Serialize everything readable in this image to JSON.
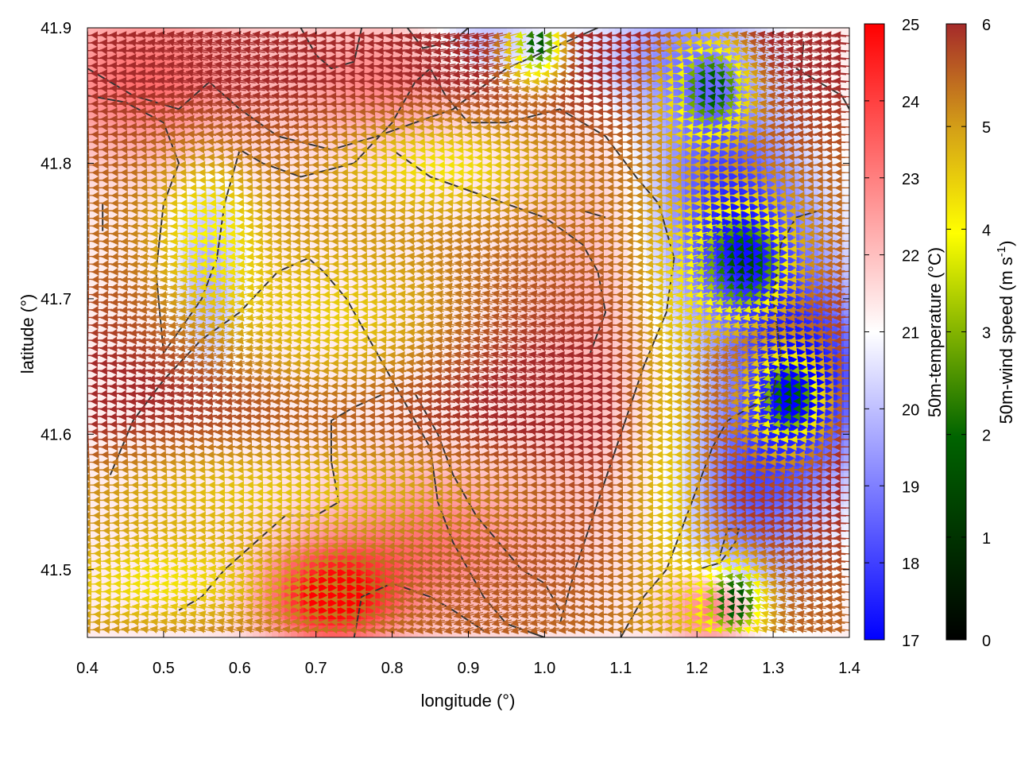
{
  "chart_data": {
    "type": "heatmap",
    "title": "",
    "xlabel": "longitude (°)",
    "ylabel": "latitude (°)",
    "xlim": [
      0.4,
      1.4
    ],
    "ylim": [
      41.45,
      41.9
    ],
    "x_ticks": [
      "0.4",
      "0.5",
      "0.6",
      "0.7",
      "0.8",
      "0.9",
      "1.0",
      "1.1",
      "1.2",
      "1.3",
      "1.4"
    ],
    "y_ticks": [
      "41.5",
      "41.6",
      "41.7",
      "41.8",
      "41.9"
    ],
    "temperature_colorbar": {
      "label": "50m-temperature (°C)",
      "range": [
        17,
        25
      ],
      "ticks": [
        "17",
        "18",
        "19",
        "20",
        "21",
        "22",
        "23",
        "24",
        "25"
      ],
      "colors": [
        "#0000ff",
        "#ffffff",
        "#ff0000"
      ]
    },
    "wind_colorbar": {
      "label": "50m-wind speed (m s",
      "label_sup": "-1",
      "label_end": ")",
      "range": [
        0,
        6
      ],
      "ticks": [
        "0",
        "1",
        "2",
        "3",
        "4",
        "5",
        "6"
      ],
      "colors": [
        "#000000",
        "#006400",
        "#ffff00",
        "#d4a017",
        "#a52a2a"
      ]
    },
    "temperature_field": {
      "base": 21.3,
      "anomalies": [
        {
          "lon": 1.26,
          "lat": 41.74,
          "dT": -3.6,
          "sx": 0.07,
          "sy": 0.05
        },
        {
          "lon": 1.35,
          "lat": 41.64,
          "dT": -3.8,
          "sx": 0.06,
          "sy": 0.05
        },
        {
          "lon": 1.27,
          "lat": 41.56,
          "dT": -2.6,
          "sx": 0.06,
          "sy": 0.06
        },
        {
          "lon": 1.22,
          "lat": 41.83,
          "dT": -2.0,
          "sx": 0.06,
          "sy": 0.05
        },
        {
          "lon": 1.15,
          "lat": 41.88,
          "dT": -1.5,
          "sx": 0.08,
          "sy": 0.03
        },
        {
          "lon": 0.92,
          "lat": 41.89,
          "dT": -1.4,
          "sx": 0.05,
          "sy": 0.02
        },
        {
          "lon": 0.56,
          "lat": 41.72,
          "dT": -1.6,
          "sx": 0.03,
          "sy": 0.05
        },
        {
          "lon": 0.72,
          "lat": 41.48,
          "dT": 3.8,
          "sx": 0.06,
          "sy": 0.025
        },
        {
          "lon": 0.85,
          "lat": 41.52,
          "dT": 1.8,
          "sx": 0.1,
          "sy": 0.04
        },
        {
          "lon": 0.48,
          "lat": 41.86,
          "dT": 2.0,
          "sx": 0.1,
          "sy": 0.04
        },
        {
          "lon": 0.78,
          "lat": 41.86,
          "dT": 1.6,
          "sx": 0.08,
          "sy": 0.03
        },
        {
          "lon": 1.05,
          "lat": 41.68,
          "dT": 0.9,
          "sx": 0.06,
          "sy": 0.1
        },
        {
          "lon": 1.22,
          "lat": 41.47,
          "dT": 2.2,
          "sx": 0.04,
          "sy": 0.02
        }
      ]
    },
    "wind_field": {
      "u_base": -5.8,
      "v_base": 0.0,
      "calm_zones": [
        {
          "lon": 1.26,
          "lat": 41.73,
          "r": 0.07
        },
        {
          "lon": 1.32,
          "lat": 41.63,
          "r": 0.06
        },
        {
          "lon": 1.25,
          "lat": 41.48,
          "r": 0.045
        },
        {
          "lon": 1.22,
          "lat": 41.86,
          "r": 0.06
        },
        {
          "lon": 0.99,
          "lat": 41.89,
          "r": 0.04
        }
      ],
      "moderate_bands": [
        {
          "lon": 0.72,
          "lat": 41.68,
          "sx": 0.13,
          "sy": 0.045
        },
        {
          "lon": 0.65,
          "lat": 41.56,
          "sx": 0.25,
          "sy": 0.03
        },
        {
          "lon": 0.87,
          "lat": 41.8,
          "sx": 0.1,
          "sy": 0.025
        },
        {
          "lon": 0.56,
          "lat": 41.75,
          "sx": 0.05,
          "sy": 0.04
        },
        {
          "lon": 1.17,
          "lat": 41.6,
          "sx": 0.04,
          "sy": 0.12
        },
        {
          "lon": 0.5,
          "lat": 41.49,
          "sx": 0.12,
          "sy": 0.025
        }
      ],
      "grid_spacing_deg": 0.0125
    },
    "contours": [
      [
        [
          0.4,
          41.87
        ],
        [
          0.46,
          41.85
        ],
        [
          0.52,
          41.84
        ],
        [
          0.56,
          41.86
        ],
        [
          0.6,
          41.84
        ],
        [
          0.65,
          41.82
        ],
        [
          0.72,
          41.81
        ],
        [
          0.78,
          41.82
        ],
        [
          0.83,
          41.83
        ],
        [
          0.88,
          41.84
        ],
        [
          0.95,
          41.87
        ],
        [
          1.03,
          41.89
        ],
        [
          1.07,
          41.9
        ]
      ],
      [
        [
          0.4,
          41.85
        ],
        [
          0.45,
          41.845
        ],
        [
          0.5,
          41.83
        ],
        [
          0.52,
          41.8
        ],
        [
          0.5,
          41.77
        ],
        [
          0.49,
          41.72
        ],
        [
          0.5,
          41.66
        ],
        [
          0.55,
          41.7
        ],
        [
          0.57,
          41.73
        ],
        [
          0.58,
          41.77
        ],
        [
          0.6,
          41.81
        ],
        [
          0.63,
          41.8
        ],
        [
          0.68,
          41.79
        ],
        [
          0.75,
          41.8
        ],
        [
          0.8,
          41.83
        ],
        [
          0.83,
          41.86
        ],
        [
          0.85,
          41.87
        ],
        [
          0.87,
          41.85
        ],
        [
          0.9,
          41.83
        ],
        [
          0.95,
          41.83
        ],
        [
          1.02,
          41.84
        ],
        [
          1.08,
          41.82
        ],
        [
          1.12,
          41.79
        ],
        [
          1.15,
          41.77
        ],
        [
          1.17,
          41.73
        ],
        [
          1.16,
          41.69
        ],
        [
          1.13,
          41.65
        ],
        [
          1.1,
          41.6
        ],
        [
          1.07,
          41.55
        ],
        [
          1.04,
          41.5
        ],
        [
          1.02,
          41.46
        ]
      ],
      [
        [
          0.68,
          41.9
        ],
        [
          0.7,
          41.88
        ],
        [
          0.72,
          41.87
        ],
        [
          0.75,
          41.875
        ],
        [
          0.76,
          41.9
        ]
      ],
      [
        [
          0.82,
          41.9
        ],
        [
          0.84,
          41.885
        ],
        [
          0.88,
          41.89
        ],
        [
          0.9,
          41.9
        ]
      ],
      [
        [
          0.42,
          41.77
        ],
        [
          0.42,
          41.75
        ]
      ],
      [
        [
          0.43,
          41.57
        ],
        [
          0.46,
          41.61
        ],
        [
          0.5,
          41.64
        ],
        [
          0.55,
          41.67
        ],
        [
          0.6,
          41.69
        ],
        [
          0.65,
          41.72
        ],
        [
          0.69,
          41.73
        ],
        [
          0.71,
          41.72
        ],
        [
          0.74,
          41.7
        ],
        [
          0.77,
          41.67
        ],
        [
          0.8,
          41.64
        ],
        [
          0.82,
          41.62
        ],
        [
          0.85,
          41.59
        ],
        [
          0.86,
          41.55
        ],
        [
          0.88,
          41.52
        ],
        [
          0.9,
          41.5
        ],
        [
          0.92,
          41.48
        ],
        [
          0.95,
          41.46
        ],
        [
          1.0,
          41.45
        ]
      ],
      [
        [
          0.52,
          41.47
        ],
        [
          0.55,
          41.48
        ],
        [
          0.58,
          41.5
        ],
        [
          0.62,
          41.52
        ],
        [
          0.66,
          41.54
        ],
        [
          0.7,
          41.54
        ],
        [
          0.73,
          41.55
        ],
        [
          0.72,
          41.58
        ],
        [
          0.72,
          41.61
        ],
        [
          0.75,
          41.62
        ],
        [
          0.79,
          41.63
        ],
        [
          0.83,
          41.63
        ],
        [
          0.86,
          41.6
        ],
        [
          0.88,
          41.57
        ],
        [
          0.91,
          41.54
        ],
        [
          0.94,
          41.52
        ],
        [
          0.97,
          41.5
        ],
        [
          1.0,
          41.49
        ],
        [
          1.02,
          41.47
        ]
      ],
      [
        [
          0.75,
          41.45
        ],
        [
          0.76,
          41.48
        ],
        [
          0.8,
          41.49
        ],
        [
          0.85,
          41.48
        ],
        [
          0.88,
          41.47
        ],
        [
          0.92,
          41.455
        ]
      ],
      [
        [
          0.8,
          41.81
        ],
        [
          0.85,
          41.79
        ],
        [
          0.9,
          41.78
        ],
        [
          0.95,
          41.77
        ],
        [
          1.0,
          41.76
        ],
        [
          1.05,
          41.74
        ],
        [
          1.07,
          41.72
        ],
        [
          1.08,
          41.69
        ],
        [
          1.06,
          41.66
        ]
      ],
      [
        [
          1.05,
          41.765
        ],
        [
          1.08,
          41.76
        ]
      ],
      [
        [
          1.1,
          41.45
        ],
        [
          1.13,
          41.48
        ],
        [
          1.16,
          41.5
        ],
        [
          1.18,
          41.53
        ],
        [
          1.2,
          41.56
        ],
        [
          1.22,
          41.59
        ],
        [
          1.24,
          41.61
        ],
        [
          1.27,
          41.62
        ],
        [
          1.3,
          41.63
        ],
        [
          1.31,
          41.66
        ],
        [
          1.3,
          41.7
        ],
        [
          1.31,
          41.74
        ],
        [
          1.33,
          41.76
        ],
        [
          1.36,
          41.765
        ]
      ],
      [
        [
          1.2,
          41.5
        ],
        [
          1.23,
          41.505
        ],
        [
          1.25,
          41.52
        ],
        [
          1.255,
          41.53
        ],
        [
          1.24,
          41.53
        ],
        [
          1.23,
          41.51
        ]
      ],
      [
        [
          1.33,
          41.87
        ],
        [
          1.36,
          41.86
        ],
        [
          1.39,
          41.85
        ],
        [
          1.4,
          41.84
        ]
      ],
      [
        [
          1.34,
          41.89
        ],
        [
          1.335,
          41.86
        ]
      ]
    ]
  }
}
